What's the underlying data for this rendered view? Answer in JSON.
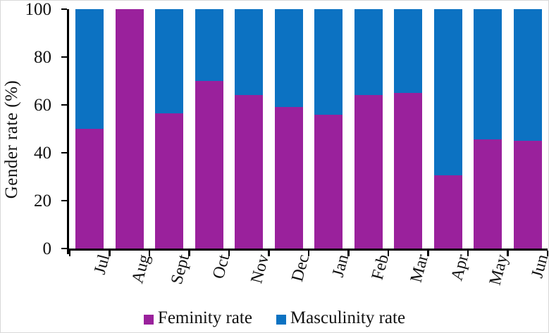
{
  "figure": {
    "y_axis_title": "Gender rate (%)",
    "colors": {
      "feminity": "#9A219C",
      "masculinity": "#0C72C2",
      "axis": "#000000",
      "text": "#111111"
    }
  },
  "chart_data": {
    "type": "bar",
    "stacked": true,
    "title": "",
    "xlabel": "",
    "ylabel": "Gender rate (%)",
    "ylim": [
      0,
      100
    ],
    "grid": false,
    "legend_position": "bottom",
    "y_ticks": [
      0,
      20,
      40,
      60,
      80,
      100
    ],
    "x_tick_label_rotation_deg": -75,
    "categories": [
      "Jul",
      "Aug",
      "Sept",
      "Oct",
      "Nov",
      "Dec",
      "Jan",
      "Feb",
      "Mar",
      "Apr",
      "May",
      "Jun"
    ],
    "series": [
      {
        "name": "Feminity rate",
        "color": "#9A219C",
        "values": [
          50,
          100,
          56.5,
          70,
          64,
          59,
          56,
          64,
          65,
          30.5,
          45.5,
          45
        ]
      },
      {
        "name": "Masculinity rate",
        "color": "#0C72C2",
        "values": [
          50,
          0,
          43.5,
          30,
          36,
          41,
          44,
          36,
          35,
          69.5,
          54.5,
          55
        ]
      }
    ]
  }
}
